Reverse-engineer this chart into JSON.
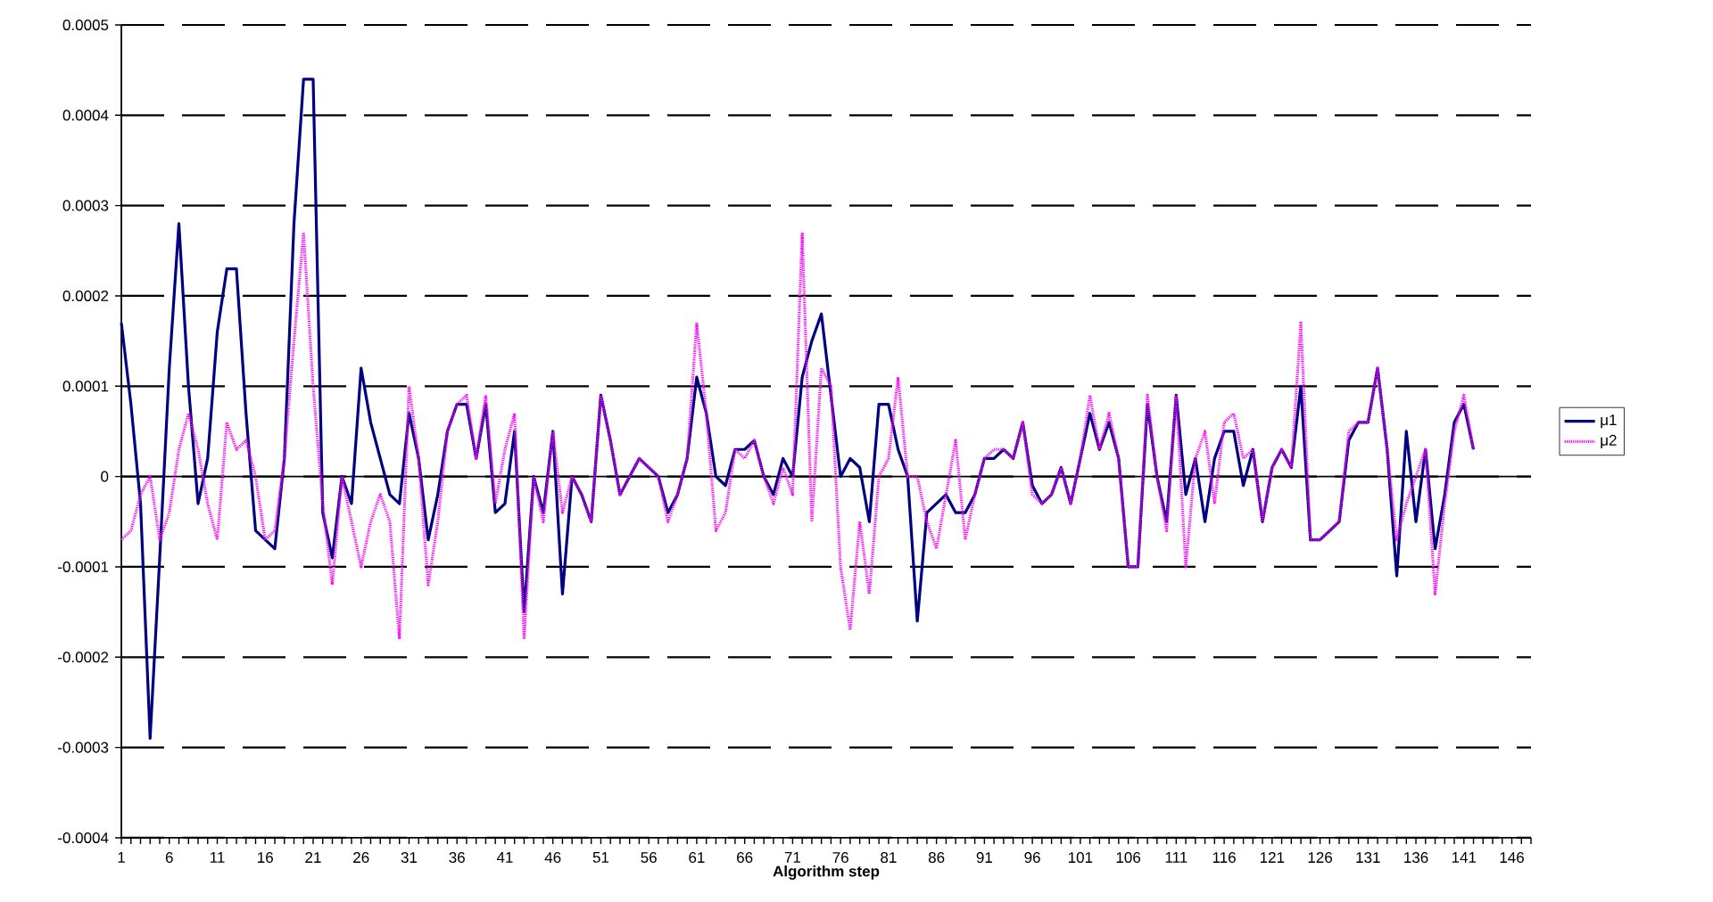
{
  "chart_data": {
    "type": "line",
    "xlabel": "**Algorithm step**",
    "categories": [
      "1",
      null,
      null,
      null,
      null,
      "6",
      null,
      null,
      null,
      null,
      "11",
      null,
      null,
      null,
      null,
      "16",
      null,
      null,
      null,
      null,
      "21",
      null,
      null,
      null,
      null,
      "26",
      null,
      null,
      null,
      null,
      "31",
      null,
      null,
      null,
      null,
      "36",
      null,
      null,
      null,
      null,
      "41",
      null,
      null,
      null,
      null,
      "46",
      null,
      null,
      null,
      null,
      "51",
      null,
      null,
      null,
      null,
      "56",
      null,
      null,
      null,
      null,
      "61",
      null,
      null,
      null,
      null,
      "66",
      null,
      null,
      null,
      null,
      "71",
      null,
      null,
      null,
      null,
      "76",
      null,
      null,
      null,
      null,
      "81",
      null,
      null,
      null,
      null,
      "86",
      null,
      null,
      null,
      null,
      "91",
      null,
      null,
      null,
      null,
      "96",
      null,
      null,
      null,
      null,
      "101",
      null,
      null,
      null,
      null,
      "106",
      null,
      null,
      null,
      null,
      "111",
      null,
      null,
      null,
      null,
      "116",
      null,
      null,
      null,
      null,
      "121",
      null,
      null,
      null,
      null,
      "126",
      null,
      null,
      null,
      null,
      "131",
      null,
      null,
      null,
      null,
      "136",
      null,
      null,
      null,
      null,
      "141",
      null,
      null,
      null,
      null,
      "146",
      null,
      null
    ],
    "series": [
      {
        "name": "μ1",
        "color": "#000080",
        "line_style": "solid",
        "values": [
          0.00017,
          8e-05,
          -3e-05,
          -0.00029,
          -9e-05,
          0.00012,
          0.00028,
          0.0001,
          -3e-05,
          2e-05,
          0.00016,
          0.00023,
          0.00023,
          7e-05,
          -6e-05,
          -7e-05,
          -8e-05,
          2e-05,
          0.00028,
          0.00044,
          0.00044,
          -4e-05,
          -9e-05,
          0,
          -3e-05,
          0.00012,
          6e-05,
          2e-05,
          -2e-05,
          -3e-05,
          7e-05,
          2e-05,
          -7e-05,
          -2e-05,
          5e-05,
          8e-05,
          8e-05,
          2e-05,
          8e-05,
          -4e-05,
          -3e-05,
          5e-05,
          -0.00015,
          0,
          -4e-05,
          5e-05,
          -0.00013,
          0,
          -2e-05,
          -5e-05,
          9e-05,
          4e-05,
          -2e-05,
          0,
          2e-05,
          1e-05,
          0,
          -4e-05,
          -2e-05,
          2e-05,
          0.00011,
          7e-05,
          0,
          -1e-05,
          3e-05,
          3e-05,
          4e-05,
          0,
          -2e-05,
          2e-05,
          0,
          0.00011,
          0.00015,
          0.00018,
          9e-05,
          0,
          2e-05,
          1e-05,
          -5e-05,
          8e-05,
          8e-05,
          3e-05,
          0,
          -0.00016,
          -4e-05,
          -3e-05,
          -2e-05,
          -4e-05,
          -4e-05,
          -2e-05,
          2e-05,
          2e-05,
          3e-05,
          2e-05,
          6e-05,
          -1e-05,
          -3e-05,
          -2e-05,
          1e-05,
          -3e-05,
          2e-05,
          7e-05,
          3e-05,
          6e-05,
          2e-05,
          -0.0001,
          -0.0001,
          8e-05,
          0,
          -5e-05,
          9e-05,
          -2e-05,
          2e-05,
          -5e-05,
          2e-05,
          5e-05,
          5e-05,
          -1e-05,
          3e-05,
          -5e-05,
          1e-05,
          3e-05,
          1e-05,
          0.0001,
          -7e-05,
          -7e-05,
          -6e-05,
          -5e-05,
          4e-05,
          6e-05,
          6e-05,
          0.00012,
          3e-05,
          -0.00011,
          5e-05,
          -5e-05,
          3e-05,
          -8e-05,
          -2e-05,
          6e-05,
          8e-05,
          3e-05,
          null,
          null,
          null,
          null,
          null,
          null
        ]
      },
      {
        "name": "μ2",
        "color": "#ff00ff",
        "line_style": "dotted",
        "values": [
          -7e-05,
          -6e-05,
          -2e-05,
          0,
          -7e-05,
          -4e-05,
          3e-05,
          7e-05,
          3e-05,
          -3e-05,
          -7e-05,
          6e-05,
          3e-05,
          4e-05,
          0,
          -7e-05,
          -6e-05,
          2e-05,
          0.00015,
          0.00027,
          0.0001,
          -3e-05,
          -0.00012,
          0,
          -5e-05,
          -0.0001,
          -5e-05,
          -2e-05,
          -5e-05,
          -0.00018,
          0.0001,
          2e-05,
          -0.00012,
          -5e-05,
          5e-05,
          8e-05,
          9e-05,
          2e-05,
          9e-05,
          -3e-05,
          3e-05,
          7e-05,
          -0.00018,
          0,
          -5e-05,
          5e-05,
          -4e-05,
          0,
          -2e-05,
          -5e-05,
          9e-05,
          4e-05,
          -2e-05,
          0,
          2e-05,
          1e-05,
          0,
          -5e-05,
          -2e-05,
          2e-05,
          0.00017,
          7e-05,
          -6e-05,
          -4e-05,
          3e-05,
          2e-05,
          4e-05,
          0,
          -3e-05,
          1e-05,
          -2e-05,
          0.00027,
          -5e-05,
          0.00012,
          0.0001,
          -0.0001,
          -0.00017,
          -5e-05,
          -0.00013,
          0,
          2e-05,
          0.00011,
          0,
          0,
          -5e-05,
          -8e-05,
          -2e-05,
          4e-05,
          -7e-05,
          -2e-05,
          2e-05,
          3e-05,
          3e-05,
          2e-05,
          6e-05,
          -2e-05,
          -3e-05,
          -2e-05,
          1e-05,
          -3e-05,
          2e-05,
          9e-05,
          3e-05,
          7e-05,
          2e-05,
          -0.0001,
          -0.0001,
          9e-05,
          0,
          -6e-05,
          9e-05,
          -0.0001,
          2e-05,
          5e-05,
          -3e-05,
          6e-05,
          7e-05,
          2e-05,
          3e-05,
          -5e-05,
          1e-05,
          3e-05,
          1e-05,
          0.00017,
          -7e-05,
          -7e-05,
          -6e-05,
          -5e-05,
          5e-05,
          6e-05,
          6e-05,
          0.00012,
          3e-05,
          -7e-05,
          -3e-05,
          0,
          3e-05,
          -0.00013,
          -3e-05,
          5e-05,
          9e-05,
          3e-05,
          null,
          null,
          null,
          null,
          null,
          null
        ]
      }
    ],
    "ylim": [
      -0.0004,
      0.0005
    ],
    "yticks": [
      -0.0004,
      -0.0003,
      -0.0002,
      -0.0001,
      0,
      0.0001,
      0.0002,
      0.0003,
      0.0004,
      0.0005
    ],
    "grid": "y",
    "legend": "right"
  }
}
